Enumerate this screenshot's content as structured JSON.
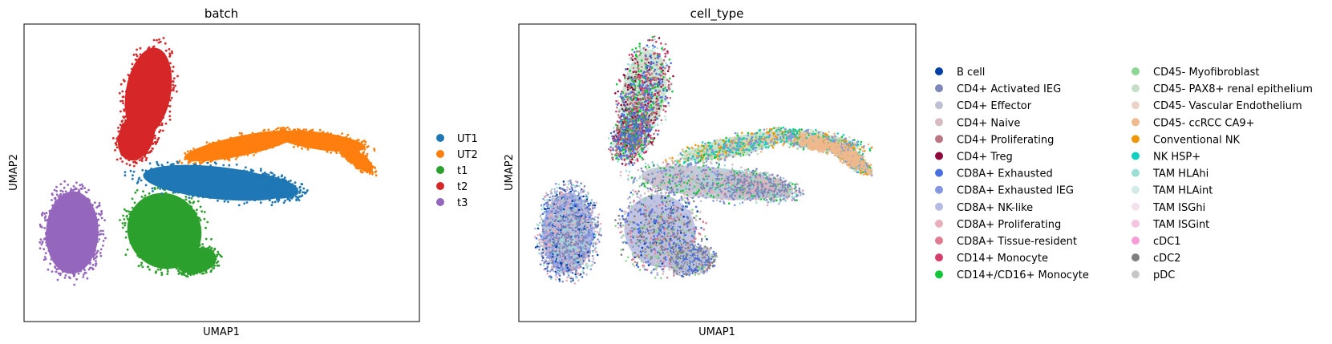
{
  "chart_data": [
    {
      "type": "scatter",
      "title": "batch",
      "xlabel": "UMAP1",
      "ylabel": "UMAP2",
      "grid": false,
      "legend_position": "right",
      "series": [
        {
          "name": "UT1",
          "color": "#1f77b4"
        },
        {
          "name": "UT2",
          "color": "#ff7f0e"
        },
        {
          "name": "t1",
          "color": "#2ca02c"
        },
        {
          "name": "t2",
          "color": "#d62728"
        },
        {
          "name": "t3",
          "color": "#9467bd"
        }
      ]
    },
    {
      "type": "scatter",
      "title": "cell_type",
      "xlabel": "UMAP1",
      "ylabel": "UMAP2",
      "grid": false,
      "legend_position": "right",
      "series": [
        {
          "name": "B cell",
          "color": "#023fa5"
        },
        {
          "name": "CD4+ Activated IEG",
          "color": "#7d87b9"
        },
        {
          "name": "CD4+ Effector",
          "color": "#bec1d4"
        },
        {
          "name": "CD4+ Naive",
          "color": "#d6bcc0"
        },
        {
          "name": "CD4+ Proliferating",
          "color": "#bb7784"
        },
        {
          "name": "CD4+ Treg",
          "color": "#8e063b"
        },
        {
          "name": "CD8A+ Exhausted",
          "color": "#4a6fe3"
        },
        {
          "name": "CD8A+ Exhausted IEG",
          "color": "#8595e1"
        },
        {
          "name": "CD8A+ NK-like",
          "color": "#b5bbe3"
        },
        {
          "name": "CD8A+ Proliferating",
          "color": "#e6afb9"
        },
        {
          "name": "CD8A+ Tissue-resident",
          "color": "#e07b91"
        },
        {
          "name": "CD14+ Monocyte",
          "color": "#d33f6a"
        },
        {
          "name": "CD14+/CD16+ Monocyte",
          "color": "#11c638"
        },
        {
          "name": "CD45- Myofibroblast",
          "color": "#8dd593"
        },
        {
          "name": "CD45- PAX8+ renal epithelium",
          "color": "#c6dec7"
        },
        {
          "name": "CD45- Vascular Endothelium",
          "color": "#ead3c6"
        },
        {
          "name": "CD45- ccRCC CA9+",
          "color": "#f0b98d"
        },
        {
          "name": "Conventional NK",
          "color": "#ef9708"
        },
        {
          "name": "NK HSP+",
          "color": "#0fcfc0"
        },
        {
          "name": "TAM HLAhi",
          "color": "#9cded6"
        },
        {
          "name": "TAM HLAint",
          "color": "#d5eae7"
        },
        {
          "name": "TAM ISGhi",
          "color": "#f3e1eb"
        },
        {
          "name": "TAM ISGint",
          "color": "#f6c4e1"
        },
        {
          "name": "cDC1",
          "color": "#f79cd4"
        },
        {
          "name": "cDC2",
          "color": "#7f7f7f"
        },
        {
          "name": "pDC",
          "color": "#c7c7c7"
        }
      ]
    }
  ]
}
